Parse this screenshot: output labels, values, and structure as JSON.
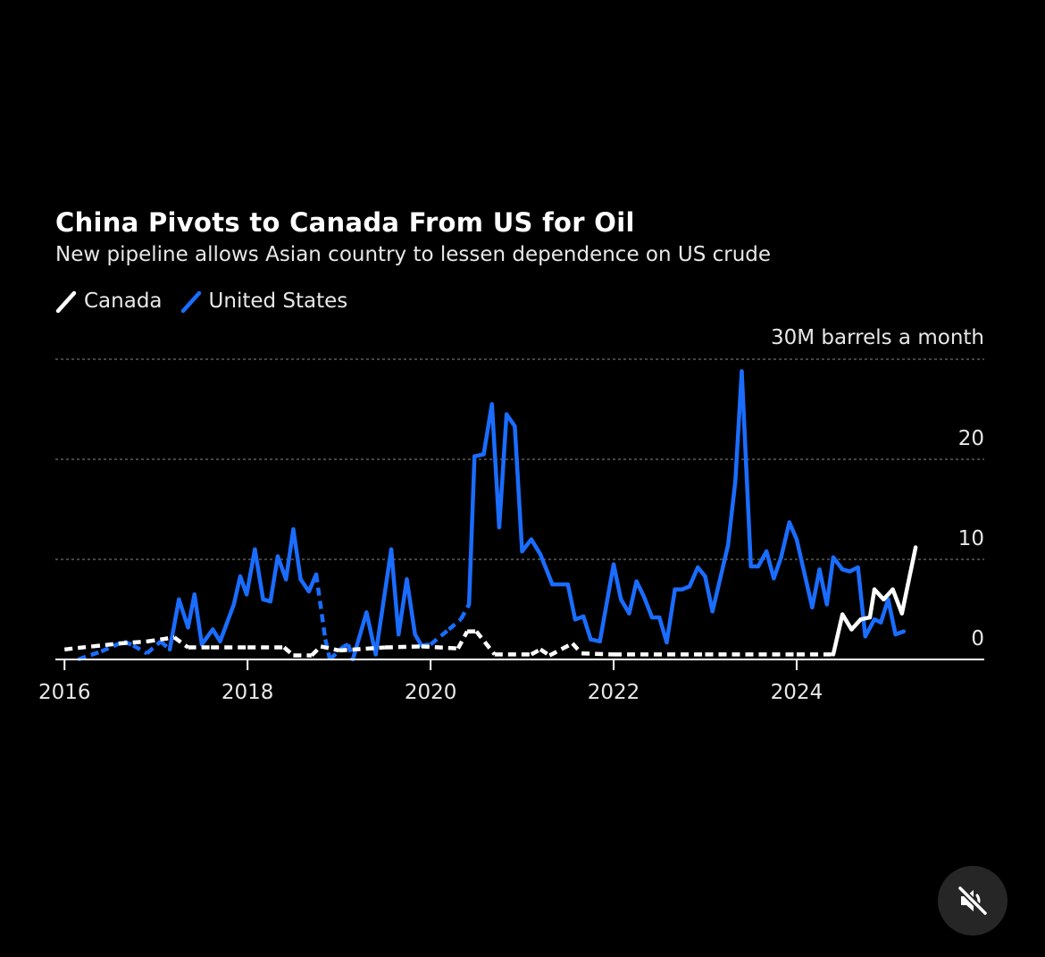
{
  "chart_data": {
    "type": "line",
    "title": "China Pivots to Canada From US for Oil",
    "subtitle": "New pipeline allows Asian country to lessen dependence on US crude",
    "ylabel": "30M barrels a month",
    "ylim": [
      0,
      30
    ],
    "yticks": [
      0,
      10,
      20
    ],
    "xlim": [
      2015.9,
      2026.05
    ],
    "xticks": [
      2016,
      2018,
      2020,
      2022,
      2024
    ],
    "grid": true,
    "legend_position": "top-left",
    "series": [
      {
        "name": "Canada",
        "color": "#ffffff",
        "points": [
          [
            2016.0,
            1.0,
            1
          ],
          [
            2016.3,
            1.3,
            1
          ],
          [
            2016.6,
            1.6,
            1
          ],
          [
            2016.9,
            1.8,
            1
          ],
          [
            2017.2,
            2.2,
            1
          ],
          [
            2017.35,
            1.2,
            1
          ],
          [
            2017.6,
            1.2,
            1
          ],
          [
            2018.0,
            1.2,
            1
          ],
          [
            2018.4,
            1.2,
            1
          ],
          [
            2018.5,
            0.4,
            1
          ],
          [
            2018.7,
            0.4,
            1
          ],
          [
            2018.8,
            1.3,
            1
          ],
          [
            2019.0,
            0.9,
            1
          ],
          [
            2019.5,
            1.2,
            1
          ],
          [
            2019.9,
            1.3,
            1
          ],
          [
            2020.3,
            1.1,
            1
          ],
          [
            2020.4,
            2.8,
            1
          ],
          [
            2020.5,
            2.8,
            1
          ],
          [
            2020.7,
            0.5,
            1
          ],
          [
            2021.1,
            0.5,
            1
          ],
          [
            2021.2,
            1.0,
            1
          ],
          [
            2021.3,
            0.4,
            1
          ],
          [
            2021.55,
            1.6,
            1
          ],
          [
            2021.65,
            0.6,
            1
          ],
          [
            2022.0,
            0.5,
            1
          ],
          [
            2023.0,
            0.5,
            1
          ],
          [
            2024.0,
            0.5,
            1
          ],
          [
            2024.4,
            0.5,
            0
          ],
          [
            2024.5,
            4.5,
            0
          ],
          [
            2024.6,
            3.0,
            0
          ],
          [
            2024.7,
            4.0,
            0
          ],
          [
            2024.8,
            4.2,
            0
          ],
          [
            2024.85,
            7.0,
            0
          ],
          [
            2024.95,
            6.0,
            0
          ],
          [
            2025.05,
            7.0,
            0
          ],
          [
            2025.15,
            4.6,
            0
          ],
          [
            2025.3,
            11.2,
            0
          ]
        ]
      },
      {
        "name": "United States",
        "color": "#1a6dff",
        "points": [
          [
            2016.15,
            0.0,
            1
          ],
          [
            2016.4,
            0.8,
            1
          ],
          [
            2016.65,
            1.8,
            1
          ],
          [
            2016.75,
            1.4,
            1
          ],
          [
            2016.9,
            0.6,
            1
          ],
          [
            2017.05,
            1.8,
            1
          ],
          [
            2017.15,
            1.0,
            0
          ],
          [
            2017.25,
            6.0,
            0
          ],
          [
            2017.35,
            3.2,
            0
          ],
          [
            2017.42,
            6.5,
            0
          ],
          [
            2017.5,
            1.5,
            0
          ],
          [
            2017.62,
            3.0,
            0
          ],
          [
            2017.7,
            1.8,
            0
          ],
          [
            2017.85,
            5.5,
            0
          ],
          [
            2017.92,
            8.3,
            0
          ],
          [
            2017.99,
            6.5,
            0
          ],
          [
            2018.08,
            11.0,
            0
          ],
          [
            2018.17,
            6.0,
            0
          ],
          [
            2018.25,
            5.8,
            0
          ],
          [
            2018.33,
            10.3,
            0
          ],
          [
            2018.42,
            8.0,
            0
          ],
          [
            2018.5,
            13.0,
            0
          ],
          [
            2018.58,
            8.0,
            0
          ],
          [
            2018.67,
            6.8,
            0
          ],
          [
            2018.75,
            8.5,
            1
          ],
          [
            2018.85,
            2.0,
            1
          ],
          [
            2018.9,
            0.0,
            1
          ],
          [
            2019.05,
            1.3,
            1
          ],
          [
            2019.1,
            1.5,
            1
          ],
          [
            2019.15,
            0.0,
            0
          ],
          [
            2019.3,
            4.7,
            0
          ],
          [
            2019.4,
            0.5,
            0
          ],
          [
            2019.57,
            11.0,
            0
          ],
          [
            2019.65,
            2.5,
            0
          ],
          [
            2019.74,
            8.0,
            0
          ],
          [
            2019.83,
            2.5,
            0
          ],
          [
            2019.9,
            1.4,
            1
          ],
          [
            2020.0,
            1.5,
            1
          ],
          [
            2020.2,
            3.0,
            1
          ],
          [
            2020.33,
            4.0,
            1
          ],
          [
            2020.42,
            5.5,
            0
          ],
          [
            2020.48,
            20.3,
            0
          ],
          [
            2020.58,
            20.5,
            0
          ],
          [
            2020.67,
            25.5,
            0
          ],
          [
            2020.75,
            13.2,
            0
          ],
          [
            2020.83,
            24.5,
            0
          ],
          [
            2020.92,
            23.3,
            0
          ],
          [
            2021.0,
            10.8,
            0
          ],
          [
            2021.1,
            12.0,
            0
          ],
          [
            2021.2,
            10.5,
            0
          ],
          [
            2021.33,
            7.5,
            0
          ],
          [
            2021.5,
            7.5,
            0
          ],
          [
            2021.58,
            4.0,
            0
          ],
          [
            2021.67,
            4.3,
            0
          ],
          [
            2021.75,
            2.0,
            0
          ],
          [
            2021.85,
            1.8,
            0
          ],
          [
            2022.0,
            9.5,
            0
          ],
          [
            2022.08,
            6.0,
            0
          ],
          [
            2022.17,
            4.6,
            0
          ],
          [
            2022.25,
            7.8,
            0
          ],
          [
            2022.33,
            6.3,
            0
          ],
          [
            2022.42,
            4.2,
            0
          ],
          [
            2022.5,
            4.2,
            0
          ],
          [
            2022.58,
            1.7,
            0
          ],
          [
            2022.67,
            7.0,
            0
          ],
          [
            2022.75,
            7.0,
            0
          ],
          [
            2022.83,
            7.3,
            0
          ],
          [
            2022.92,
            9.2,
            0
          ],
          [
            2023.0,
            8.3,
            0
          ],
          [
            2023.08,
            4.8,
            0
          ],
          [
            2023.25,
            11.4,
            0
          ],
          [
            2023.33,
            17.8,
            0
          ],
          [
            2023.4,
            28.8,
            0
          ],
          [
            2023.5,
            9.3,
            0
          ],
          [
            2023.58,
            9.3,
            0
          ],
          [
            2023.67,
            10.8,
            0
          ],
          [
            2023.75,
            8.1,
            0
          ],
          [
            2023.83,
            10.2,
            0
          ],
          [
            2023.92,
            13.7,
            0
          ],
          [
            2024.0,
            12.0,
            0
          ],
          [
            2024.1,
            8.0,
            0
          ],
          [
            2024.17,
            5.2,
            0
          ],
          [
            2024.25,
            9.0,
            0
          ],
          [
            2024.33,
            5.5,
            0
          ],
          [
            2024.4,
            10.2,
            0
          ],
          [
            2024.5,
            9.0,
            0
          ],
          [
            2024.58,
            8.8,
            0
          ],
          [
            2024.67,
            9.2,
            0
          ],
          [
            2024.75,
            2.3,
            0
          ],
          [
            2024.85,
            4.0,
            0
          ],
          [
            2024.92,
            3.7,
            0
          ],
          [
            2025.0,
            6.0,
            0
          ],
          [
            2025.08,
            2.5,
            0
          ],
          [
            2025.17,
            2.8,
            0
          ]
        ]
      }
    ]
  },
  "controls": {
    "mute_icon": "speaker-muted-icon"
  }
}
